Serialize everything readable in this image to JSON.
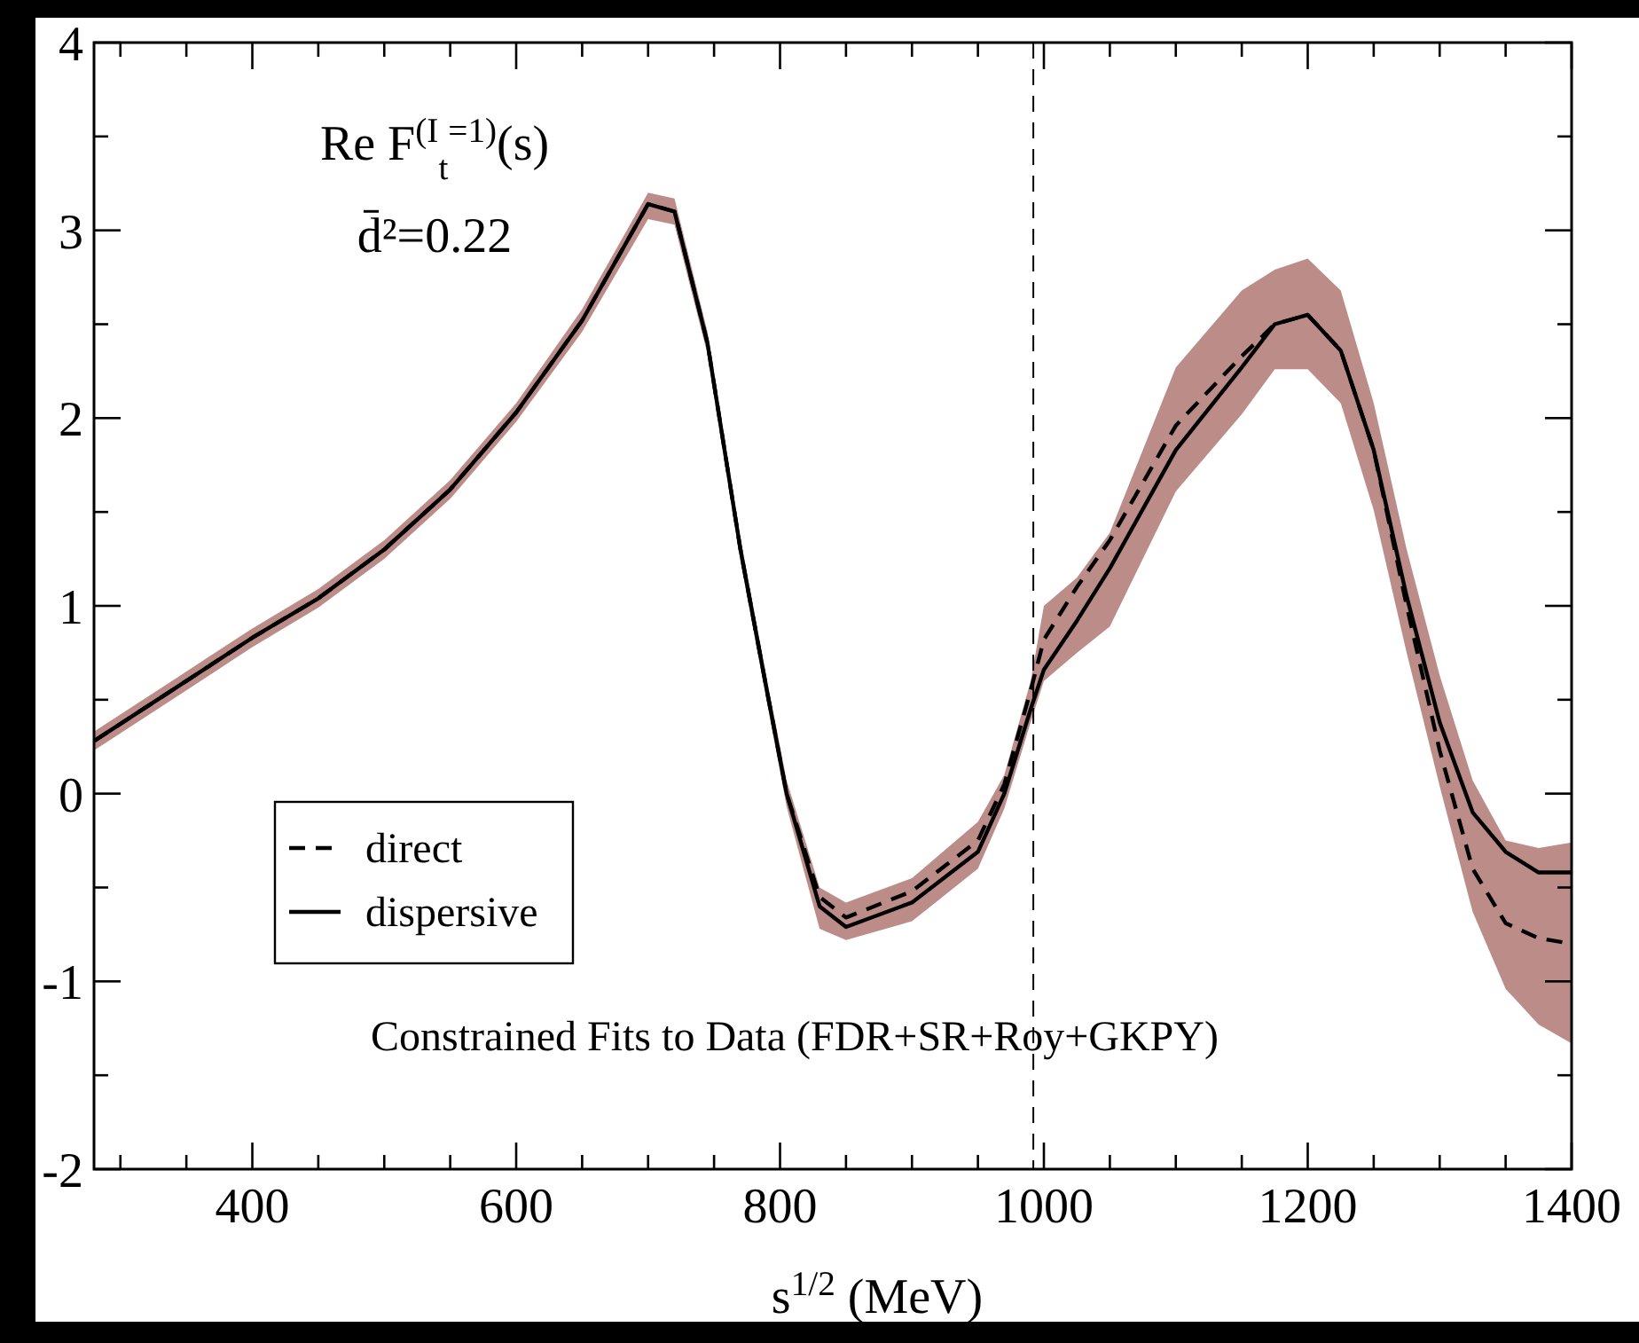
{
  "chart_data": {
    "type": "line",
    "xlabel": "s$^{1/2}$ (MeV)",
    "annotations": [
      "Re F$^{(I}$$_{t}$$^{=1)}$(s)",
      "d̄²=0.22",
      "Constrained Fits to Data (FDR+SR+Roy+GKPY)"
    ],
    "xlim": [
      280,
      1400
    ],
    "xticks": [
      {
        "value": 300,
        "label": null
      },
      {
        "value": 350,
        "label": null
      },
      400,
      {
        "value": 450,
        "label": null
      },
      {
        "value": 500,
        "label": null
      },
      {
        "value": 550,
        "label": null
      },
      600,
      {
        "value": 650,
        "label": null
      },
      {
        "value": 700,
        "label": null
      },
      {
        "value": 750,
        "label": null
      },
      800,
      {
        "value": 850,
        "label": null
      },
      {
        "value": 900,
        "label": null
      },
      {
        "value": 950,
        "label": null
      },
      1000,
      {
        "value": 1050,
        "label": null
      },
      {
        "value": 1100,
        "label": null
      },
      {
        "value": 1150,
        "label": null
      },
      1200,
      {
        "value": 1250,
        "label": null
      },
      {
        "value": 1300,
        "label": null
      },
      {
        "value": 1350,
        "label": null
      },
      1400
    ],
    "ylim": [
      -2,
      4
    ],
    "yticks": [
      -2,
      {
        "value": -1.5,
        "label": null
      },
      -1,
      {
        "value": -0.5,
        "label": null
      },
      0,
      {
        "value": 0.5,
        "label": null
      },
      1,
      {
        "value": 1.5,
        "label": null
      },
      2,
      {
        "value": 2.5,
        "label": null
      },
      3,
      {
        "value": 3.5,
        "label": null
      },
      4
    ],
    "grid": false,
    "legend": "bottom left",
    "marker": "none",
    "ref_lines": [
      {
        "axis": "x",
        "value": 992,
        "line_style": "dashed",
        "color": "#000000"
      }
    ],
    "series": [
      {
        "name": "dispersive",
        "color": "#000000",
        "line_style": "solid",
        "x": [
          280,
          350,
          400,
          450,
          500,
          550,
          600,
          650,
          700,
          720,
          745,
          770,
          790,
          805,
          830,
          850,
          900,
          950,
          970,
          990,
          1000,
          1025,
          1050,
          1100,
          1150,
          1175,
          1200,
          1225,
          1250,
          1275,
          1300,
          1325,
          1350,
          1375,
          1400
        ],
        "values": [
          0.28,
          0.6,
          0.83,
          1.04,
          1.3,
          1.62,
          2.03,
          2.52,
          3.14,
          3.1,
          2.4,
          1.3,
          0.55,
          0,
          -0.6,
          -0.71,
          -0.58,
          -0.31,
          0,
          0.45,
          0.66,
          0.92,
          1.2,
          1.83,
          2.27,
          2.5,
          2.55,
          2.36,
          1.83,
          1.05,
          0.38,
          -0.1,
          -0.31,
          -0.42,
          -0.42
        ],
        "lower": [
          0.23,
          0.55,
          0.78,
          0.99,
          1.25,
          1.57,
          1.98,
          2.46,
          3.06,
          3.03,
          2.34,
          1.24,
          0.49,
          -0.07,
          -0.72,
          -0.78,
          -0.68,
          -0.4,
          -0.08,
          0.38,
          0.6,
          0.75,
          0.89,
          1.61,
          2.02,
          2.26,
          2.26,
          2.08,
          1.51,
          0.75,
          0.04,
          -0.63,
          -1.04,
          -1.23,
          -1.33
        ],
        "upper": [
          0.33,
          0.65,
          0.88,
          1.09,
          1.35,
          1.67,
          2.08,
          2.58,
          3.2,
          3.17,
          2.46,
          1.36,
          0.61,
          0.07,
          -0.5,
          -0.58,
          -0.45,
          -0.15,
          0.1,
          0.6,
          1.0,
          1.15,
          1.39,
          2.27,
          2.68,
          2.79,
          2.85,
          2.68,
          2.08,
          1.3,
          0.63,
          0.07,
          -0.25,
          -0.29,
          -0.26
        ]
      },
      {
        "name": "direct",
        "color": "#000000",
        "line_style": "dashed",
        "x": [
          280,
          350,
          400,
          450,
          500,
          550,
          600,
          650,
          700,
          720,
          745,
          770,
          790,
          805,
          830,
          850,
          900,
          950,
          970,
          990,
          1000,
          1025,
          1050,
          1100,
          1150,
          1175,
          1200,
          1225,
          1250,
          1275,
          1300,
          1325,
          1350,
          1375,
          1400
        ],
        "values": [
          0.28,
          0.6,
          0.83,
          1.04,
          1.3,
          1.62,
          2.03,
          2.52,
          3.14,
          3.1,
          2.4,
          1.3,
          0.55,
          0,
          -0.55,
          -0.66,
          -0.52,
          -0.25,
          0.05,
          0.55,
          0.82,
          1.1,
          1.35,
          1.96,
          2.33,
          2.5,
          2.55,
          2.36,
          1.83,
          1.0,
          0.23,
          -0.4,
          -0.69,
          -0.77,
          -0.8
        ]
      }
    ]
  }
}
